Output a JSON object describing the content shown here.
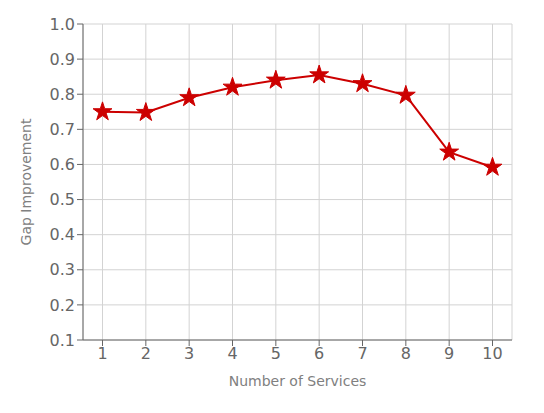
{
  "chart_data": {
    "type": "line",
    "xlabel": "Number of Services",
    "ylabel": "Gap Improvement",
    "x": [
      1,
      2,
      3,
      4,
      5,
      6,
      7,
      8,
      9,
      10
    ],
    "series": [
      {
        "color": "#cc0000",
        "marker": "star",
        "line_style": "solid",
        "values": [
          0.75,
          0.748,
          0.79,
          0.82,
          0.84,
          0.855,
          0.83,
          0.797,
          0.635,
          0.592
        ]
      }
    ],
    "xlim": [
      0.55,
      10.45
    ],
    "xticks": [
      1,
      2,
      3,
      4,
      5,
      6,
      7,
      8,
      9,
      10
    ],
    "ylim": [
      0.1,
      1.0
    ],
    "yticks": [
      0.1,
      0.2,
      0.3,
      0.4,
      0.5,
      0.6,
      0.7,
      0.8,
      0.9,
      {
        "value": 1.0,
        "label": "1.0"
      }
    ],
    "grid": true
  }
}
